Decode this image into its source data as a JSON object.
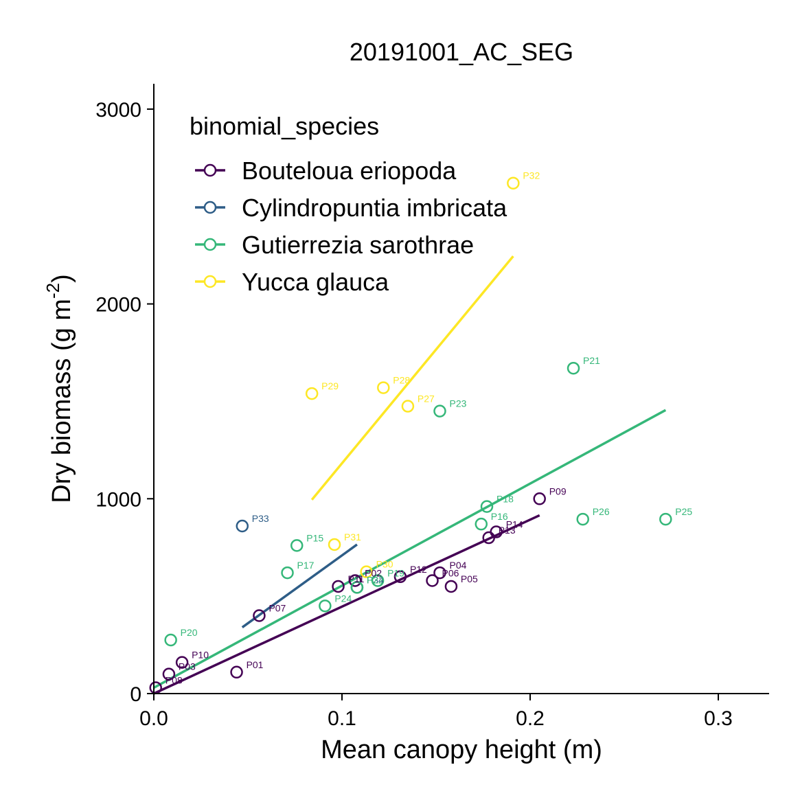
{
  "chart_data": {
    "type": "scatter",
    "title": "20191001_AC_SEG",
    "xlabel": "Mean canopy height (m)",
    "ylabel": "Dry biomass (g m",
    "ylabel_sup": "-2",
    "ylabel_close": ")",
    "xlim": [
      0,
      0.327
    ],
    "ylim": [
      0,
      3130
    ],
    "xticks": [
      0.0,
      0.1,
      0.2,
      0.3
    ],
    "xtick_labels": [
      "0.0",
      "0.1",
      "0.2",
      "0.3"
    ],
    "yticks": [
      0,
      1000,
      2000,
      3000
    ],
    "ytick_labels": [
      "0",
      "1000",
      "2000",
      "3000"
    ],
    "grid": false,
    "legend": {
      "title": "binomial_species",
      "placement": "top-left"
    },
    "series": [
      {
        "name": "Bouteloua eriopoda",
        "color": "#440154",
        "points": [
          {
            "label": "P01",
            "x": 0.044,
            "y": 110
          },
          {
            "label": "P02",
            "x": 0.107,
            "y": 580
          },
          {
            "label": "P03",
            "x": 0.008,
            "y": 100
          },
          {
            "label": "P04",
            "x": 0.152,
            "y": 620
          },
          {
            "label": "P05",
            "x": 0.158,
            "y": 550
          },
          {
            "label": "P06",
            "x": 0.148,
            "y": 580
          },
          {
            "label": "P07",
            "x": 0.056,
            "y": 400
          },
          {
            "label": "P08",
            "x": 0.001,
            "y": 30
          },
          {
            "label": "P09",
            "x": 0.205,
            "y": 1000
          },
          {
            "label": "P10",
            "x": 0.015,
            "y": 160
          },
          {
            "label": "P11",
            "x": 0.098,
            "y": 550
          },
          {
            "label": "P12",
            "x": 0.131,
            "y": 600
          },
          {
            "label": "P13",
            "x": 0.178,
            "y": 800
          },
          {
            "label": "P14",
            "x": 0.182,
            "y": 830
          }
        ],
        "fit": {
          "x": [
            0.0,
            0.205
          ],
          "y": [
            0,
            915
          ]
        }
      },
      {
        "name": "Cylindropuntia imbricata",
        "color": "#2e5d87",
        "points": [
          {
            "label": "P33",
            "x": 0.047,
            "y": 860
          },
          {
            "label": "P34",
            "x": 0.108,
            "y": 545
          }
        ],
        "fit": {
          "x": [
            0.047,
            0.108
          ],
          "y": [
            340,
            765
          ]
        }
      },
      {
        "name": "Gutierrezia sarothrae",
        "color": "#35b779",
        "points": [
          {
            "label": "P15",
            "x": 0.076,
            "y": 760
          },
          {
            "label": "P16",
            "x": 0.174,
            "y": 870
          },
          {
            "label": "P17",
            "x": 0.071,
            "y": 620
          },
          {
            "label": "P18",
            "x": 0.177,
            "y": 960
          },
          {
            "label": "P19",
            "x": 0.119,
            "y": 580
          },
          {
            "label": "P20",
            "x": 0.009,
            "y": 275
          },
          {
            "label": "P21",
            "x": 0.223,
            "y": 1670
          },
          {
            "label": "P22",
            "x": 0.108,
            "y": 545
          },
          {
            "label": "P23",
            "x": 0.152,
            "y": 1450
          },
          {
            "label": "P24",
            "x": 0.091,
            "y": 450
          },
          {
            "label": "P25",
            "x": 0.272,
            "y": 895
          },
          {
            "label": "P26",
            "x": 0.228,
            "y": 895
          }
        ],
        "fit": {
          "x": [
            0.0,
            0.272
          ],
          "y": [
            30,
            1455
          ]
        }
      },
      {
        "name": "Yucca glauca",
        "color": "#fde725",
        "points": [
          {
            "label": "P27",
            "x": 0.135,
            "y": 1475
          },
          {
            "label": "P28",
            "x": 0.122,
            "y": 1570
          },
          {
            "label": "P29",
            "x": 0.084,
            "y": 1540
          },
          {
            "label": "P30",
            "x": 0.113,
            "y": 625
          },
          {
            "label": "P31",
            "x": 0.096,
            "y": 765
          },
          {
            "label": "P32",
            "x": 0.191,
            "y": 2620
          }
        ],
        "fit": {
          "x": [
            0.084,
            0.191
          ],
          "y": [
            995,
            2245
          ]
        }
      }
    ]
  }
}
